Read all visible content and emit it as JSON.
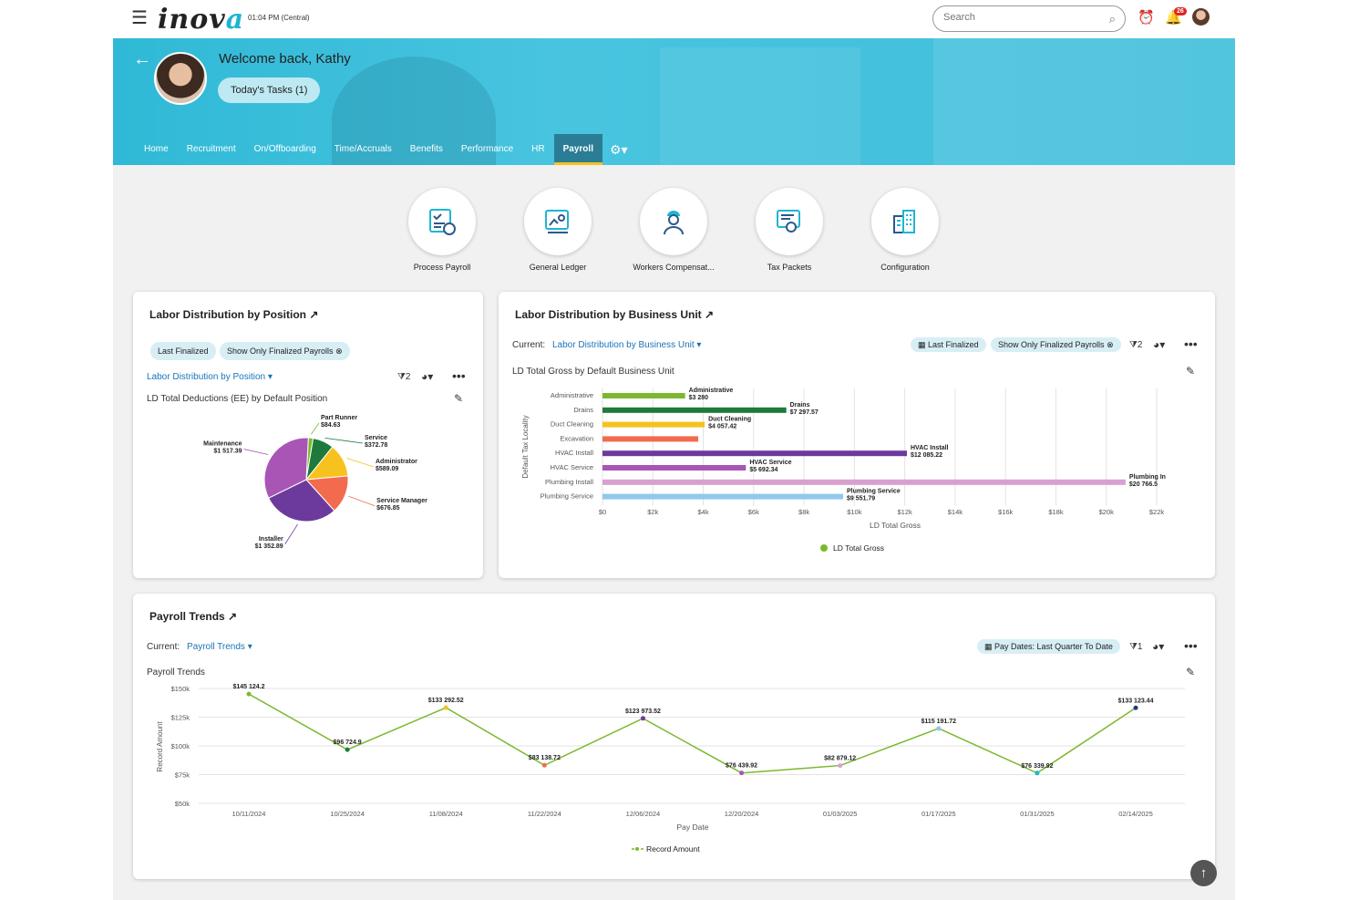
{
  "header": {
    "clock": "01:04 PM (Central)",
    "search_placeholder": "Search",
    "notification_count": "26",
    "logo_main": "inov",
    "logo_accent": "a"
  },
  "hero": {
    "welcome": "Welcome back, Kathy",
    "tasks_button": "Today's Tasks (1)",
    "tabs": [
      "Home",
      "Recruitment",
      "On/Offboarding",
      "Time/Accruals",
      "Benefits",
      "Performance",
      "HR",
      "Payroll"
    ],
    "active_tab": "Payroll"
  },
  "quick_links": [
    {
      "label": "Process Payroll",
      "icon": "process-payroll-icon"
    },
    {
      "label": "General Ledger",
      "icon": "general-ledger-icon"
    },
    {
      "label": "Workers Compensat...",
      "icon": "workers-comp-icon"
    },
    {
      "label": "Tax Packets",
      "icon": "tax-packets-icon"
    },
    {
      "label": "Configuration",
      "icon": "configuration-icon"
    }
  ],
  "position_card": {
    "title": "Labor Distribution by Position",
    "chip1": "Last Finalized",
    "chip2": "Show Only Finalized Payrolls",
    "selector": "Labor Distribution by Position",
    "filter_count": "2",
    "chart_title": "LD Total Deductions (EE) by Default Position"
  },
  "bu_card": {
    "title": "Labor Distribution by Business Unit",
    "current_label": "Current:",
    "selector": "Labor Distribution by Business Unit",
    "chip1": "Last Finalized",
    "chip2": "Show Only Finalized Payrolls",
    "filter_count": "2",
    "chart_title": "LD Total Gross by Default Business Unit"
  },
  "trends_card": {
    "title": "Payroll Trends",
    "current_label": "Current:",
    "selector": "Payroll Trends",
    "chip": "Pay Dates: Last Quarter To Date",
    "filter_count": "1",
    "chart_title": "Payroll Trends"
  },
  "colors": {
    "accent": "#1fb5d2",
    "tab_active": "#2a7d94",
    "tab_underline": "#f7c21e",
    "link": "#1a73b8"
  },
  "chart_data": [
    {
      "type": "pie",
      "title": "LD Total Deductions (EE) by Default Position",
      "slices": [
        {
          "label": "Part Runner",
          "value": 84.63,
          "display": "$84.63",
          "color": "#7cb82f"
        },
        {
          "label": "Service",
          "value": 372.78,
          "display": "$372.78",
          "color": "#1e7a3c"
        },
        {
          "label": "Administrator",
          "value": 589.09,
          "display": "$589.09",
          "color": "#f7c21e"
        },
        {
          "label": "Service Manager",
          "value": 676.85,
          "display": "$676.85",
          "color": "#f26b4f"
        },
        {
          "label": "Installer",
          "value": 1352.89,
          "display": "$1 352.89",
          "color": "#6c3a9c"
        },
        {
          "label": "Maintenance",
          "value": 1517.39,
          "display": "$1 517.39",
          "color": "#a855b5"
        }
      ]
    },
    {
      "type": "bar",
      "orientation": "horizontal",
      "title": "LD Total Gross by Default Business Unit",
      "xlabel": "LD Total Gross",
      "ylabel": "Default Tax Locality",
      "xlim": [
        0,
        22000
      ],
      "xticks": [
        "$0",
        "$2k",
        "$4k",
        "$6k",
        "$8k",
        "$10k",
        "$12k",
        "$14k",
        "$16k",
        "$18k",
        "$20k",
        "$22k"
      ],
      "legend": "LD Total Gross",
      "categories": [
        "Administrative",
        "Drains",
        "Duct Cleaning",
        "Excavation",
        "HVAC Install",
        "HVAC Service",
        "Plumbing Install",
        "Plumbing Service"
      ],
      "values": [
        3280,
        7297.57,
        4057.42,
        3800,
        12085.22,
        5692.34,
        20766.5,
        9551.79
      ],
      "labels": [
        "Administrative\n$3 280",
        "Drains\n$7 297.57",
        "Duct Cleaning\n$4 057.42",
        "",
        "HVAC Install\n$12 085.22",
        "HVAC Service\n$5 692.34",
        "Plumbing In\n$20 766.5",
        "Plumbing Service\n$9 551.79"
      ],
      "colors": [
        "#7cb82f",
        "#1e7a3c",
        "#f7c21e",
        "#f26b4f",
        "#6c3a9c",
        "#a855b5",
        "#d9a0cf",
        "#90c8ee"
      ]
    },
    {
      "type": "line",
      "title": "Payroll Trends",
      "xlabel": "Pay Date",
      "ylabel": "Record Amount",
      "ylim": [
        50000,
        150000
      ],
      "yticks": [
        "$50k",
        "$75k",
        "$100k",
        "$125k",
        "$150k"
      ],
      "legend": "Record Amount",
      "x": [
        "10/11/2024",
        "10/25/2024",
        "11/08/2024",
        "11/22/2024",
        "12/06/2024",
        "12/20/2024",
        "01/03/2025",
        "01/17/2025",
        "01/31/2025",
        "02/14/2025"
      ],
      "values": [
        145124.2,
        96724.9,
        133292.52,
        83138.72,
        123973.52,
        76439.92,
        82879.12,
        115191.72,
        76339.92,
        133123.44
      ],
      "labels": [
        "$145 124.2",
        "$96 724.9",
        "$133 292.52",
        "$83 138.72",
        "$123 973.52",
        "$76 439.92",
        "$82 879.12",
        "$115 191.72",
        "$76 339.92",
        "$133 123.44"
      ],
      "point_colors": [
        "#7cb82f",
        "#1e7a3c",
        "#f7c21e",
        "#f26b4f",
        "#6c3a9c",
        "#a855b5",
        "#d9a0cf",
        "#90c8ee",
        "#1fb5d2",
        "#1e3a7a"
      ]
    }
  ]
}
